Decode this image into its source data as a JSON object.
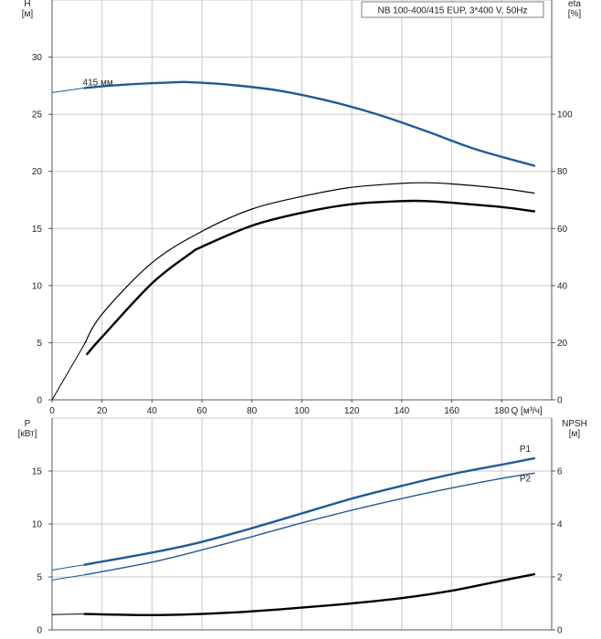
{
  "chart_data": [
    {
      "type": "line",
      "panel": "pump-curve",
      "title": "NB 100-400/415 EUP, 3*400 V, 50Hz",
      "xlabel": "Q [м³/ч]",
      "ylabel_left": "H",
      "ylabel_left_unit": "[м]",
      "ylabel_right": "eta",
      "ylabel_right_unit": "[%]",
      "xlim": [
        0,
        200
      ],
      "ylim_left": [
        0,
        35
      ],
      "ylim_right": [
        0,
        140
      ],
      "x_ticks": [
        0,
        20,
        40,
        60,
        80,
        100,
        120,
        140,
        160,
        180
      ],
      "y_left_ticks": [
        0,
        5,
        10,
        15,
        20,
        25,
        30
      ],
      "y_right_ticks": [
        0,
        20,
        40,
        60,
        80,
        100
      ],
      "annotations": [
        {
          "text": "415 мм",
          "series": "H"
        }
      ],
      "series": [
        {
          "name": "H",
          "axis": "left",
          "color": "#1f5b96",
          "width": 2.4,
          "x_start": 13,
          "x": [
            0,
            13,
            30,
            50,
            55,
            70,
            90,
            110,
            130,
            150,
            170,
            193
          ],
          "y": [
            26.9,
            27.3,
            27.6,
            27.8,
            27.8,
            27.6,
            27.1,
            26.2,
            25.0,
            23.5,
            21.9,
            20.5
          ]
        },
        {
          "name": "eta-thin",
          "axis": "right",
          "color": "#000000",
          "width": 1.2,
          "x_start": 13,
          "x": [
            0,
            13,
            20,
            40,
            60,
            80,
            100,
            120,
            140,
            150,
            160,
            180,
            193
          ],
          "y": [
            0,
            19.6,
            30,
            48,
            59,
            66.8,
            71.2,
            74.4,
            75.8,
            76,
            75.6,
            74,
            72.4
          ]
        },
        {
          "name": "eta-thick",
          "axis": "right",
          "color": "#000000",
          "width": 2.4,
          "x_start": 14,
          "x": [
            14,
            20,
            40,
            55,
            60,
            80,
            100,
            120,
            140,
            150,
            160,
            180,
            193
          ],
          "y": [
            16,
            22,
            40.8,
            51,
            53.6,
            61,
            65.5,
            68.5,
            69.6,
            69.6,
            69,
            67.5,
            66
          ]
        }
      ]
    },
    {
      "type": "line",
      "panel": "power-npsh",
      "ylabel_left": "P",
      "ylabel_left_unit": "[кВт]",
      "ylabel_right": "NPSH",
      "ylabel_right_unit": "[м]",
      "xlim": [
        0,
        200
      ],
      "ylim_left": [
        0,
        20
      ],
      "ylim_right": [
        0,
        8
      ],
      "y_left_ticks": [
        0,
        5,
        10,
        15
      ],
      "y_right_ticks": [
        0,
        2,
        4,
        6
      ],
      "series": [
        {
          "name": "P1",
          "label": "P1",
          "axis": "left",
          "color": "#1f5b96",
          "width": 2.4,
          "x_start": 13,
          "x": [
            0,
            13,
            40,
            58,
            80,
            100,
            120,
            140,
            160,
            180,
            193
          ],
          "y": [
            5.65,
            6.15,
            7.3,
            8.2,
            9.6,
            11.0,
            12.4,
            13.6,
            14.7,
            15.6,
            16.2
          ]
        },
        {
          "name": "P2",
          "label": "P2",
          "axis": "left",
          "color": "#1f5b96",
          "width": 1.4,
          "x_start": 13,
          "x": [
            0,
            13,
            40,
            60,
            80,
            100,
            120,
            140,
            160,
            180,
            193
          ],
          "y": [
            4.7,
            5.2,
            6.4,
            7.55,
            8.8,
            10.1,
            11.3,
            12.4,
            13.4,
            14.3,
            14.8
          ]
        },
        {
          "name": "NPSH",
          "axis": "right",
          "color": "#000000",
          "width": 2.4,
          "x_start": 13,
          "x": [
            0,
            13,
            40,
            60,
            80,
            100,
            120,
            140,
            160,
            180,
            193
          ],
          "y": [
            0.58,
            0.6,
            0.56,
            0.6,
            0.7,
            0.84,
            1.0,
            1.2,
            1.48,
            1.86,
            2.1
          ]
        }
      ]
    }
  ]
}
